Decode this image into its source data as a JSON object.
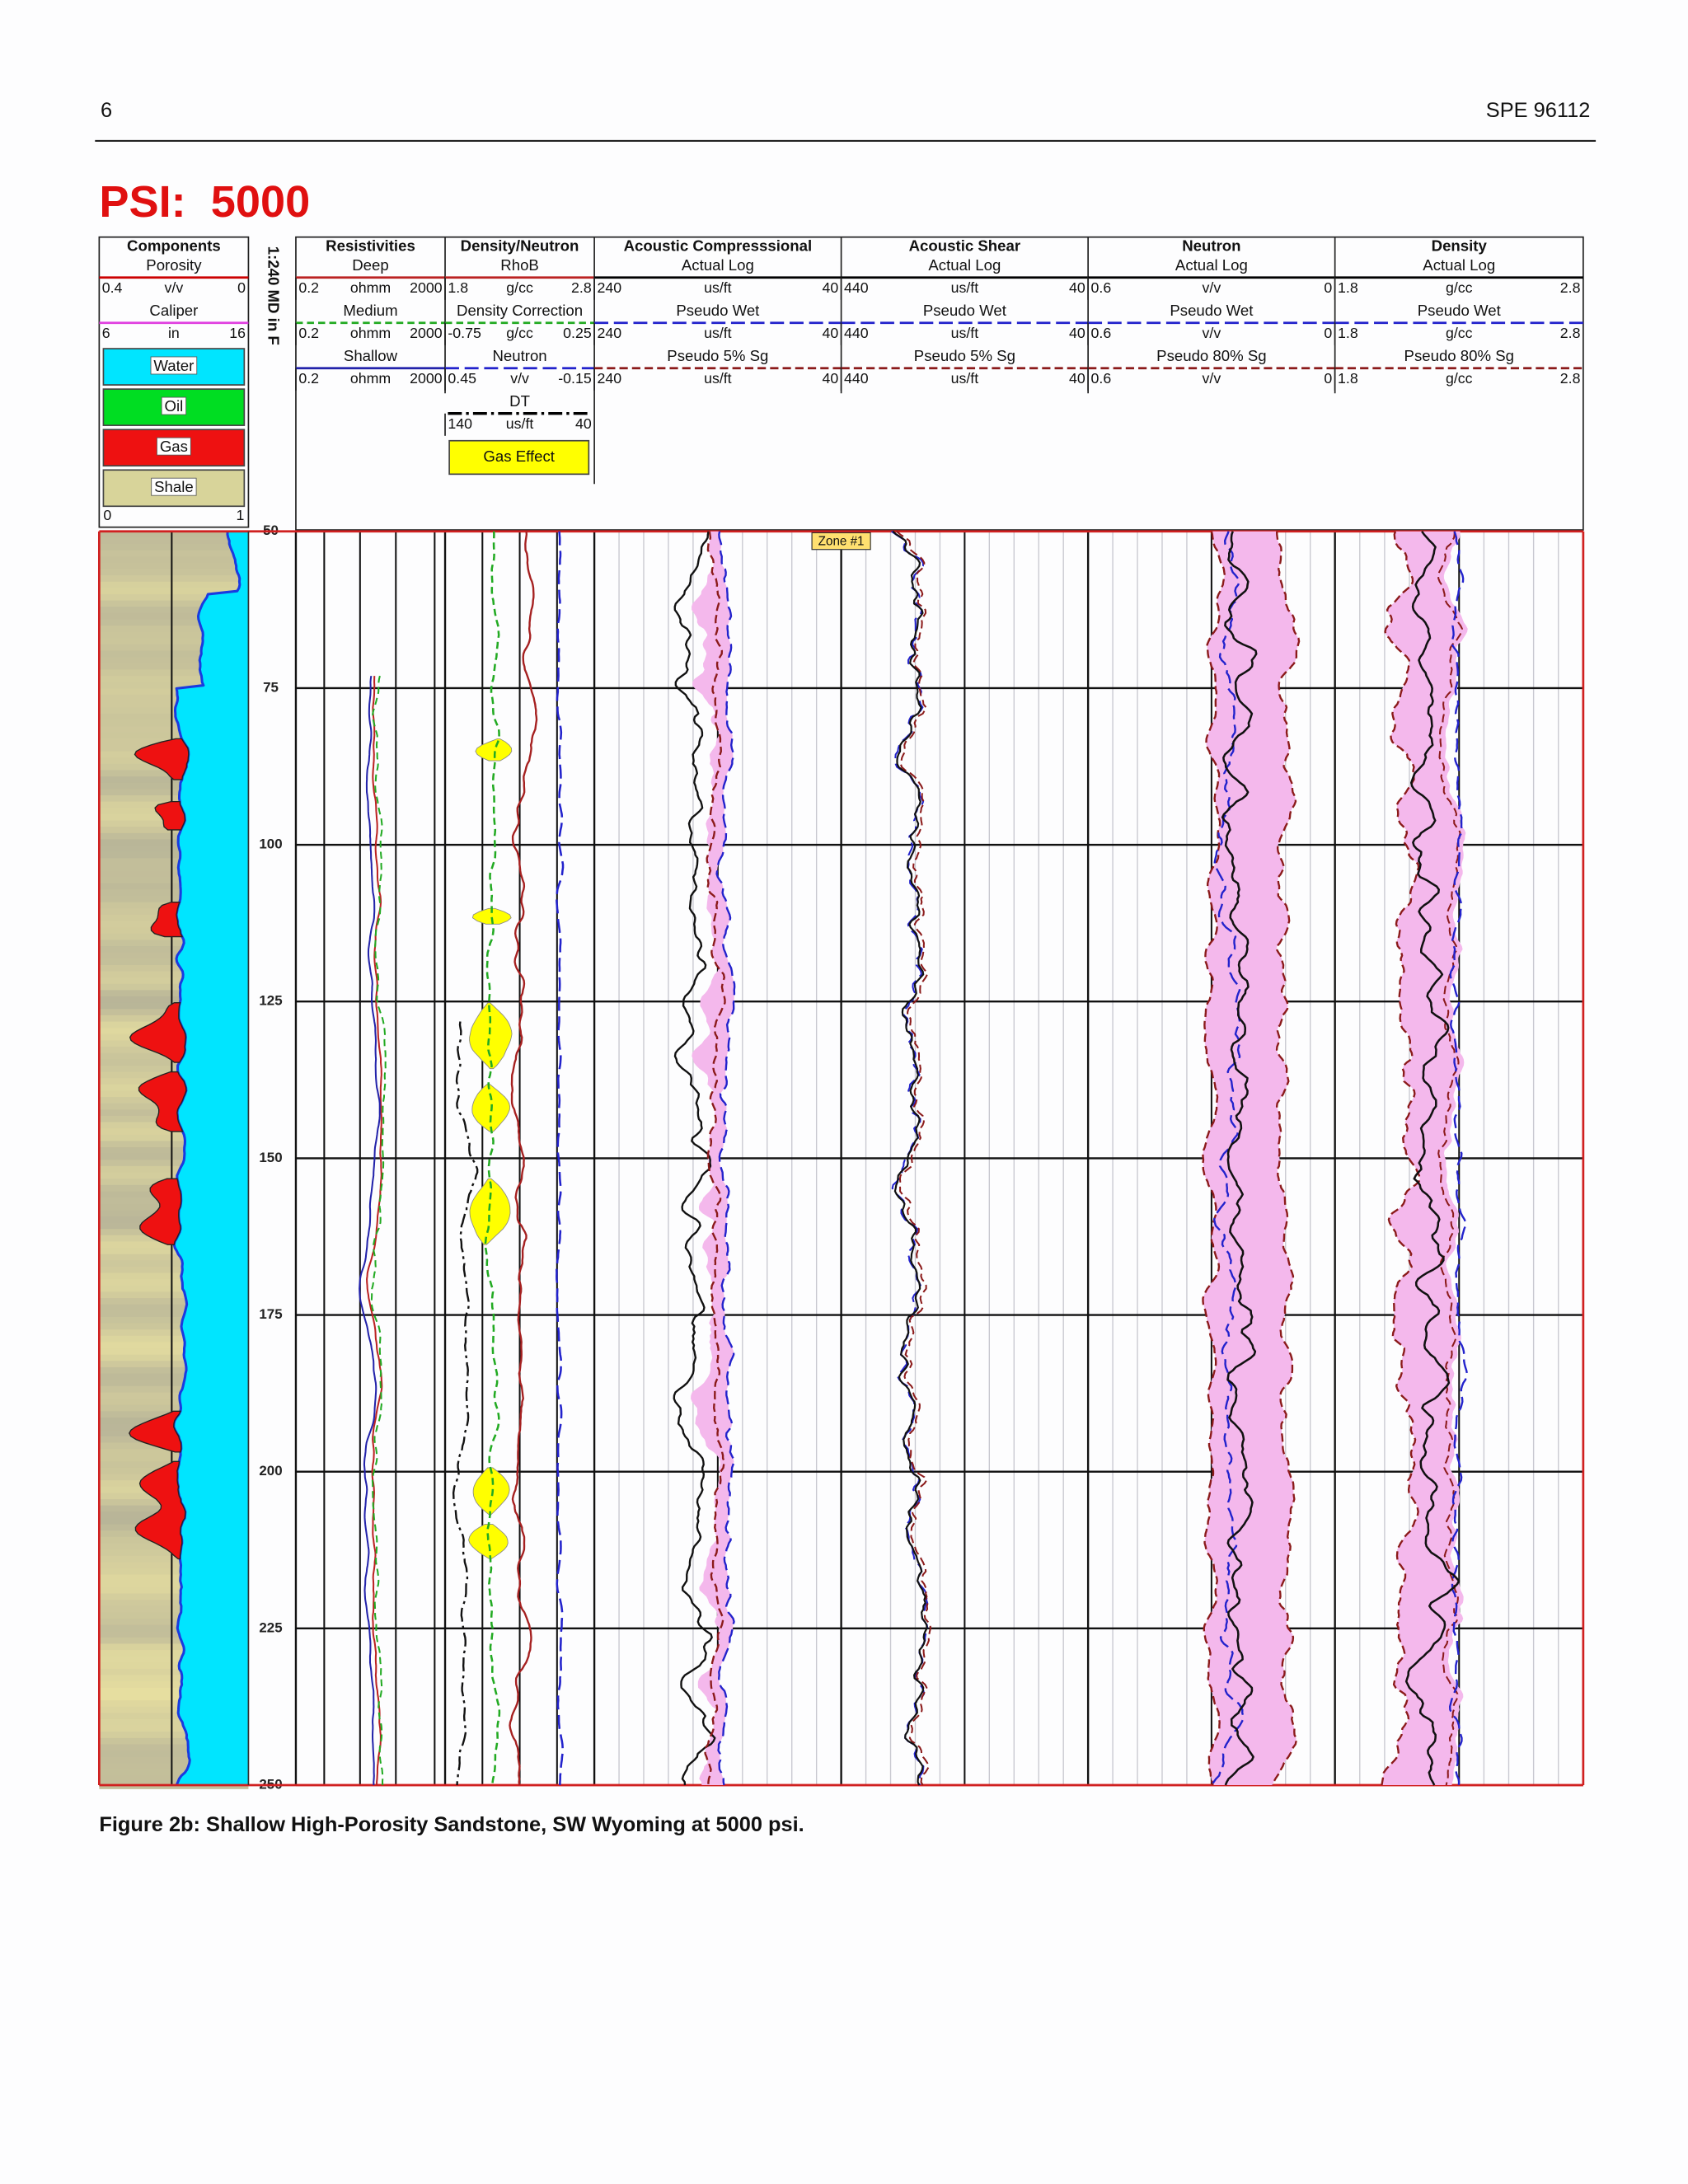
{
  "header": {
    "page_number": "6",
    "paper_id": "SPE 96112"
  },
  "figure": {
    "title": "PSI:  5000",
    "depth_label": "1:240 MD in F",
    "zone_label": "Zone #1",
    "lithology_legend": [
      "Water",
      "Oil",
      "Gas",
      "Shale"
    ],
    "lithology_scale": [
      "0",
      "1"
    ],
    "gas_effect_label": "Gas Effect",
    "depth_ticks": [
      50,
      75,
      100,
      125,
      150,
      175,
      200,
      225,
      250
    ],
    "tracks": [
      {
        "title": "Components",
        "curves": [
          {
            "name": "Porosity",
            "unit": "v/v",
            "left": "0.4",
            "right": "0"
          },
          {
            "name": "Caliper",
            "unit": "in",
            "left": "6",
            "right": "16"
          }
        ]
      },
      {
        "title": "Resistivities",
        "curves": [
          {
            "name": "Deep",
            "unit": "ohmm",
            "left": "0.2",
            "right": "2000"
          },
          {
            "name": "Medium",
            "unit": "ohmm",
            "left": "0.2",
            "right": "2000"
          },
          {
            "name": "Shallow",
            "unit": "ohmm",
            "left": "0.2",
            "right": "2000"
          }
        ]
      },
      {
        "title": "Density/Neutron",
        "curves": [
          {
            "name": "RhoB",
            "unit": "g/cc",
            "left": "1.8",
            "right": "2.8"
          },
          {
            "name": "Density Correction",
            "unit": "g/cc",
            "left": "-0.75",
            "right": "0.25"
          },
          {
            "name": "Neutron",
            "unit": "v/v",
            "left": "0.45",
            "right": "-0.15"
          },
          {
            "name": "DT",
            "unit": "us/ft",
            "left": "140",
            "right": "40"
          }
        ]
      },
      {
        "title": "Acoustic Compresssional",
        "curves": [
          {
            "name": "Actual Log",
            "unit": "us/ft",
            "left": "240",
            "right": "40"
          },
          {
            "name": "Pseudo Wet",
            "unit": "us/ft",
            "left": "240",
            "right": "40"
          },
          {
            "name": "Pseudo 5% Sg",
            "unit": "us/ft",
            "left": "240",
            "right": "40"
          }
        ]
      },
      {
        "title": "Acoustic Shear",
        "curves": [
          {
            "name": "Actual Log",
            "unit": "us/ft",
            "left": "440",
            "right": "40"
          },
          {
            "name": "Pseudo Wet",
            "unit": "us/ft",
            "left": "440",
            "right": "40"
          },
          {
            "name": "Pseudo 5% Sg",
            "unit": "us/ft",
            "left": "440",
            "right": "40"
          }
        ]
      },
      {
        "title": "Neutron",
        "curves": [
          {
            "name": "Actual Log",
            "unit": "v/v",
            "left": "0.6",
            "right": "0"
          },
          {
            "name": "Pseudo Wet",
            "unit": "v/v",
            "left": "0.6",
            "right": "0"
          },
          {
            "name": "Pseudo 80% Sg",
            "unit": "v/v",
            "left": "0.6",
            "right": "0"
          }
        ]
      },
      {
        "title": "Density",
        "curves": [
          {
            "name": "Actual Log",
            "unit": "g/cc",
            "left": "1.8",
            "right": "2.8"
          },
          {
            "name": "Pseudo Wet",
            "unit": "g/cc",
            "left": "1.8",
            "right": "2.8"
          },
          {
            "name": "Pseudo 80% Sg",
            "unit": "g/cc",
            "left": "1.8",
            "right": "2.8"
          }
        ]
      }
    ]
  },
  "caption": "Figure 2b: Shallow High-Porosity Sandstone, SW Wyoming at 5000 psi."
}
